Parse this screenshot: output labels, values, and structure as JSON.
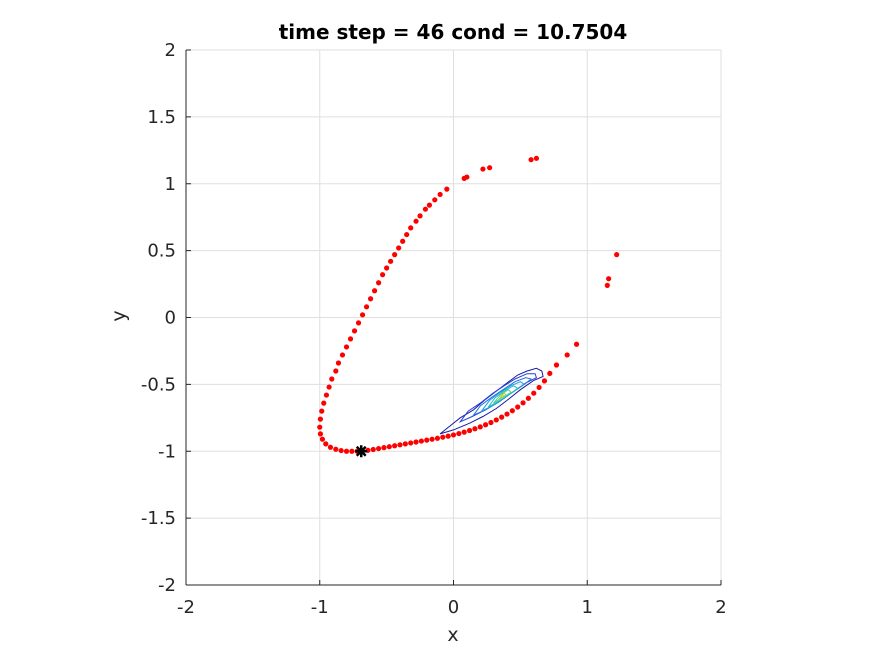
{
  "chart_data": {
    "type": "scatter",
    "title": "time step = 46 cond = 10.7504",
    "xlabel": "x",
    "ylabel": "y",
    "xlim": [
      -2,
      2
    ],
    "ylim": [
      -2,
      2
    ],
    "xticks": [
      -2,
      -1,
      0,
      1,
      2
    ],
    "yticks": [
      -2,
      -1.5,
      -1,
      -0.5,
      0,
      0.5,
      1,
      1.5,
      2
    ],
    "xtick_labels": [
      "-2",
      "-1",
      "0",
      "1",
      "2"
    ],
    "ytick_labels": [
      "-2",
      "-1.5",
      "-1",
      "-0.5",
      "0",
      "0.5",
      "1",
      "1.5",
      "2"
    ],
    "grid": true,
    "series": [
      {
        "kind": "scatter",
        "color": "#ff0000",
        "points": [
          [
            0.62,
            1.19
          ],
          [
            0.58,
            1.18
          ],
          [
            0.27,
            1.12
          ],
          [
            0.22,
            1.11
          ],
          [
            0.1,
            1.05
          ],
          [
            0.08,
            1.04
          ],
          [
            -0.05,
            0.96
          ],
          [
            -0.1,
            0.92
          ],
          [
            -0.14,
            0.88
          ],
          [
            -0.18,
            0.84
          ],
          [
            -0.21,
            0.81
          ],
          [
            -0.25,
            0.76
          ],
          [
            -0.28,
            0.72
          ],
          [
            -0.32,
            0.67
          ],
          [
            -0.35,
            0.62
          ],
          [
            -0.38,
            0.57
          ],
          [
            -0.41,
            0.52
          ],
          [
            -0.44,
            0.47
          ],
          [
            -0.47,
            0.42
          ],
          [
            -0.5,
            0.37
          ],
          [
            -0.53,
            0.32
          ],
          [
            -0.56,
            0.26
          ],
          [
            -0.59,
            0.2
          ],
          [
            -0.62,
            0.14
          ],
          [
            -0.65,
            0.08
          ],
          [
            -0.68,
            0.02
          ],
          [
            -0.71,
            -0.04
          ],
          [
            -0.74,
            -0.1
          ],
          [
            -0.77,
            -0.16
          ],
          [
            -0.8,
            -0.22
          ],
          [
            -0.83,
            -0.28
          ],
          [
            -0.86,
            -0.34
          ],
          [
            -0.88,
            -0.4
          ],
          [
            -0.91,
            -0.46
          ],
          [
            -0.93,
            -0.52
          ],
          [
            -0.95,
            -0.58
          ],
          [
            -0.97,
            -0.64
          ],
          [
            -0.985,
            -0.7
          ],
          [
            -0.995,
            -0.76
          ],
          [
            -1.0,
            -0.82
          ],
          [
            -0.995,
            -0.87
          ],
          [
            -0.98,
            -0.91
          ],
          [
            -0.955,
            -0.945
          ],
          [
            -0.92,
            -0.97
          ],
          [
            -0.88,
            -0.985
          ],
          [
            -0.84,
            -0.995
          ],
          [
            -0.8,
            -1.0
          ],
          [
            -0.76,
            -1.0
          ],
          [
            -0.72,
            -1.0
          ],
          [
            -0.68,
            -0.998
          ],
          [
            -0.64,
            -0.993
          ],
          [
            -0.6,
            -0.987
          ],
          [
            -0.56,
            -0.98
          ],
          [
            -0.52,
            -0.973
          ],
          [
            -0.48,
            -0.966
          ],
          [
            -0.44,
            -0.959
          ],
          [
            -0.4,
            -0.952
          ],
          [
            -0.36,
            -0.945
          ],
          [
            -0.32,
            -0.938
          ],
          [
            -0.28,
            -0.931
          ],
          [
            -0.24,
            -0.924
          ],
          [
            -0.2,
            -0.917
          ],
          [
            -0.16,
            -0.91
          ],
          [
            -0.12,
            -0.903
          ],
          [
            -0.08,
            -0.895
          ],
          [
            -0.04,
            -0.887
          ],
          [
            0.0,
            -0.878
          ],
          [
            0.04,
            -0.868
          ],
          [
            0.08,
            -0.857
          ],
          [
            0.12,
            -0.845
          ],
          [
            0.16,
            -0.832
          ],
          [
            0.2,
            -0.818
          ],
          [
            0.24,
            -0.802
          ],
          [
            0.28,
            -0.785
          ],
          [
            0.32,
            -0.766
          ],
          [
            0.36,
            -0.745
          ],
          [
            0.4,
            -0.722
          ],
          [
            0.44,
            -0.697
          ],
          [
            0.48,
            -0.669
          ],
          [
            0.52,
            -0.638
          ],
          [
            0.56,
            -0.604
          ],
          [
            0.6,
            -0.566
          ],
          [
            0.64,
            -0.523
          ],
          [
            0.68,
            -0.474
          ],
          [
            0.72,
            -0.418
          ],
          [
            0.77,
            -0.355
          ],
          [
            0.85,
            -0.28
          ],
          [
            0.92,
            -0.2
          ],
          [
            1.15,
            0.24
          ],
          [
            1.16,
            0.29
          ],
          [
            1.22,
            0.47
          ]
        ]
      },
      {
        "kind": "marker",
        "color": "#000000",
        "points": [
          [
            -0.69,
            -1.0
          ]
        ]
      }
    ],
    "contour": {
      "colors": [
        "#1a1aa6",
        "#2340d8",
        "#1f6ee8",
        "#1aa0e0",
        "#22c0c0",
        "#50d090",
        "#a0d040",
        "#e0d020"
      ],
      "levels": [
        [
          [
            -0.1,
            -0.87
          ],
          [
            0.0,
            -0.84
          ],
          [
            0.12,
            -0.79
          ],
          [
            0.22,
            -0.74
          ],
          [
            0.32,
            -0.68
          ],
          [
            0.4,
            -0.62
          ],
          [
            0.5,
            -0.54
          ],
          [
            0.6,
            -0.47
          ],
          [
            0.67,
            -0.44
          ],
          [
            0.66,
            -0.4
          ],
          [
            0.62,
            -0.38
          ],
          [
            0.55,
            -0.4
          ],
          [
            0.48,
            -0.43
          ],
          [
            0.4,
            -0.49
          ],
          [
            0.32,
            -0.55
          ],
          [
            0.23,
            -0.62
          ],
          [
            0.15,
            -0.69
          ],
          [
            0.05,
            -0.75
          ],
          [
            -0.05,
            -0.83
          ],
          [
            -0.1,
            -0.87
          ]
        ],
        [
          [
            0.05,
            -0.78
          ],
          [
            0.14,
            -0.74
          ],
          [
            0.24,
            -0.69
          ],
          [
            0.34,
            -0.63
          ],
          [
            0.44,
            -0.56
          ],
          [
            0.54,
            -0.49
          ],
          [
            0.62,
            -0.45
          ],
          [
            0.61,
            -0.42
          ],
          [
            0.55,
            -0.42
          ],
          [
            0.46,
            -0.46
          ],
          [
            0.38,
            -0.51
          ],
          [
            0.29,
            -0.57
          ],
          [
            0.2,
            -0.64
          ],
          [
            0.11,
            -0.7
          ],
          [
            0.05,
            -0.78
          ]
        ],
        [
          [
            0.15,
            -0.73
          ],
          [
            0.24,
            -0.69
          ],
          [
            0.34,
            -0.63
          ],
          [
            0.44,
            -0.56
          ],
          [
            0.53,
            -0.5
          ],
          [
            0.58,
            -0.46
          ],
          [
            0.54,
            -0.45
          ],
          [
            0.46,
            -0.48
          ],
          [
            0.37,
            -0.54
          ],
          [
            0.28,
            -0.6
          ],
          [
            0.2,
            -0.66
          ],
          [
            0.15,
            -0.73
          ]
        ],
        [
          [
            0.21,
            -0.7
          ],
          [
            0.29,
            -0.66
          ],
          [
            0.38,
            -0.6
          ],
          [
            0.47,
            -0.54
          ],
          [
            0.53,
            -0.5
          ],
          [
            0.5,
            -0.48
          ],
          [
            0.43,
            -0.51
          ],
          [
            0.35,
            -0.56
          ],
          [
            0.27,
            -0.62
          ],
          [
            0.21,
            -0.7
          ]
        ],
        [
          [
            0.26,
            -0.67
          ],
          [
            0.33,
            -0.63
          ],
          [
            0.41,
            -0.58
          ],
          [
            0.48,
            -0.53
          ],
          [
            0.45,
            -0.51
          ],
          [
            0.38,
            -0.55
          ],
          [
            0.31,
            -0.6
          ],
          [
            0.26,
            -0.67
          ]
        ],
        [
          [
            0.3,
            -0.64
          ],
          [
            0.36,
            -0.6
          ],
          [
            0.43,
            -0.56
          ],
          [
            0.41,
            -0.54
          ],
          [
            0.35,
            -0.58
          ],
          [
            0.3,
            -0.64
          ]
        ],
        [
          [
            0.34,
            -0.61
          ],
          [
            0.39,
            -0.58
          ],
          [
            0.38,
            -0.56
          ],
          [
            0.34,
            -0.61
          ]
        ],
        [
          [
            0.36,
            -0.59
          ],
          [
            0.37,
            -0.58
          ],
          [
            0.36,
            -0.58
          ],
          [
            0.36,
            -0.59
          ]
        ]
      ]
    }
  }
}
